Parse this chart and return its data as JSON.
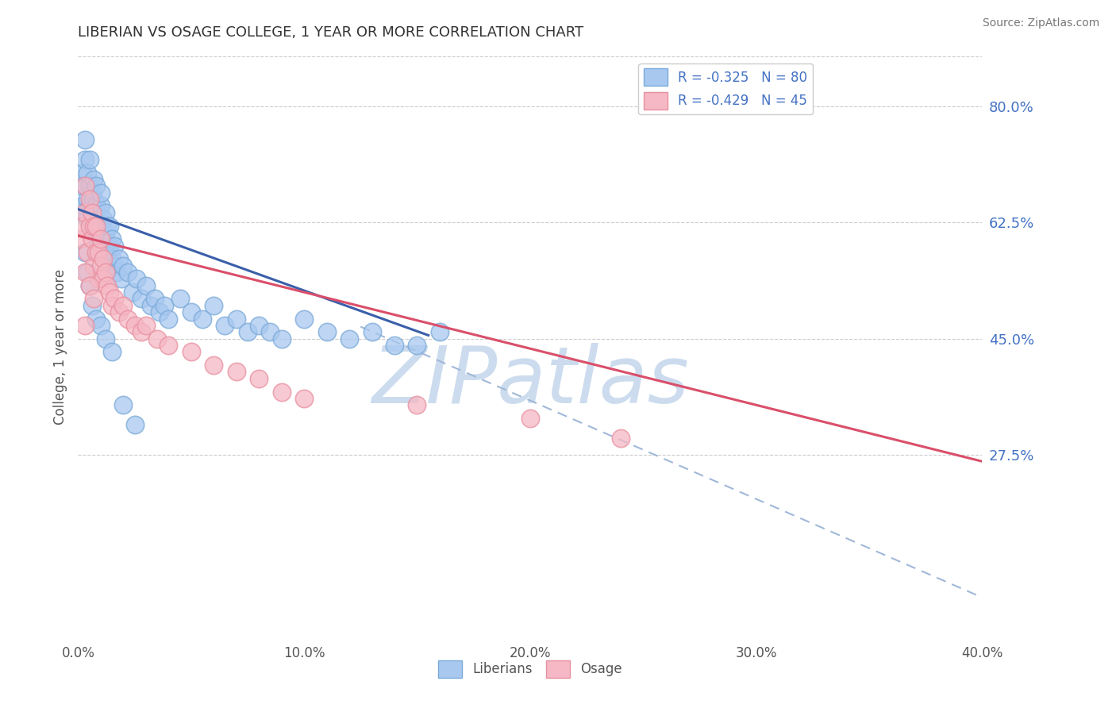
{
  "title": "LIBERIAN VS OSAGE COLLEGE, 1 YEAR OR MORE CORRELATION CHART",
  "source_text": "Source: ZipAtlas.com",
  "ylabel": "College, 1 year or more",
  "xlim": [
    0.0,
    0.4
  ],
  "ylim": [
    0.0,
    0.875
  ],
  "xticks": [
    0.0,
    0.1,
    0.2,
    0.3,
    0.4
  ],
  "xtick_labels": [
    "0.0%",
    "10.0%",
    "20.0%",
    "30.0%",
    "40.0%"
  ],
  "yticks_right": [
    0.275,
    0.45,
    0.625,
    0.8
  ],
  "ytick_labels_right": [
    "27.5%",
    "45.0%",
    "62.5%",
    "80.0%"
  ],
  "grid_color": "#cccccc",
  "grid_style": "--",
  "blue_scatter_facecolor": "#a8c8f0",
  "blue_scatter_edgecolor": "#7aaad8",
  "pink_scatter_facecolor": "#f5b8c4",
  "pink_scatter_edgecolor": "#e890a0",
  "blue_line_color": "#3a5faa",
  "pink_line_color": "#d94f6a",
  "dash_line_color": "#a0b8d8",
  "R_blue": -0.325,
  "N_blue": 80,
  "R_pink": -0.429,
  "N_pink": 45,
  "legend_label_blue": "Liberians",
  "legend_label_pink": "Osage",
  "watermark": "ZIPatlas",
  "watermark_color": "#ccdcee",
  "blue_points_x": [
    0.001,
    0.001,
    0.002,
    0.002,
    0.003,
    0.003,
    0.003,
    0.004,
    0.004,
    0.004,
    0.005,
    0.005,
    0.005,
    0.006,
    0.006,
    0.006,
    0.007,
    0.007,
    0.007,
    0.008,
    0.008,
    0.008,
    0.009,
    0.009,
    0.01,
    0.01,
    0.01,
    0.011,
    0.011,
    0.012,
    0.012,
    0.013,
    0.013,
    0.014,
    0.014,
    0.015,
    0.015,
    0.016,
    0.016,
    0.017,
    0.018,
    0.019,
    0.02,
    0.022,
    0.024,
    0.026,
    0.028,
    0.03,
    0.032,
    0.034,
    0.036,
    0.038,
    0.04,
    0.045,
    0.05,
    0.055,
    0.06,
    0.065,
    0.07,
    0.075,
    0.08,
    0.085,
    0.09,
    0.1,
    0.11,
    0.12,
    0.13,
    0.14,
    0.15,
    0.16,
    0.003,
    0.004,
    0.005,
    0.006,
    0.008,
    0.01,
    0.012,
    0.015,
    0.02,
    0.025
  ],
  "blue_points_y": [
    0.64,
    0.68,
    0.7,
    0.65,
    0.72,
    0.75,
    0.68,
    0.66,
    0.7,
    0.63,
    0.65,
    0.68,
    0.72,
    0.62,
    0.65,
    0.67,
    0.63,
    0.66,
    0.69,
    0.62,
    0.65,
    0.68,
    0.6,
    0.63,
    0.62,
    0.65,
    0.67,
    0.6,
    0.63,
    0.61,
    0.64,
    0.58,
    0.62,
    0.59,
    0.62,
    0.57,
    0.6,
    0.56,
    0.59,
    0.55,
    0.57,
    0.54,
    0.56,
    0.55,
    0.52,
    0.54,
    0.51,
    0.53,
    0.5,
    0.51,
    0.49,
    0.5,
    0.48,
    0.51,
    0.49,
    0.48,
    0.5,
    0.47,
    0.48,
    0.46,
    0.47,
    0.46,
    0.45,
    0.48,
    0.46,
    0.45,
    0.46,
    0.44,
    0.44,
    0.46,
    0.58,
    0.55,
    0.53,
    0.5,
    0.48,
    0.47,
    0.45,
    0.43,
    0.35,
    0.32
  ],
  "pink_points_x": [
    0.001,
    0.002,
    0.003,
    0.003,
    0.004,
    0.005,
    0.005,
    0.006,
    0.006,
    0.007,
    0.007,
    0.008,
    0.008,
    0.009,
    0.009,
    0.01,
    0.01,
    0.011,
    0.011,
    0.012,
    0.013,
    0.014,
    0.015,
    0.016,
    0.018,
    0.02,
    0.022,
    0.025,
    0.028,
    0.03,
    0.035,
    0.04,
    0.05,
    0.06,
    0.07,
    0.08,
    0.09,
    0.1,
    0.15,
    0.2,
    0.003,
    0.005,
    0.007,
    0.24,
    0.003
  ],
  "pink_points_y": [
    0.6,
    0.62,
    0.64,
    0.68,
    0.58,
    0.62,
    0.66,
    0.6,
    0.64,
    0.56,
    0.62,
    0.58,
    0.62,
    0.54,
    0.58,
    0.56,
    0.6,
    0.54,
    0.57,
    0.55,
    0.53,
    0.52,
    0.5,
    0.51,
    0.49,
    0.5,
    0.48,
    0.47,
    0.46,
    0.47,
    0.45,
    0.44,
    0.43,
    0.41,
    0.4,
    0.39,
    0.37,
    0.36,
    0.35,
    0.33,
    0.55,
    0.53,
    0.51,
    0.3,
    0.47
  ],
  "blue_line_x": [
    0.0,
    0.155
  ],
  "blue_line_y": [
    0.645,
    0.455
  ],
  "pink_line_x": [
    0.0,
    0.4
  ],
  "pink_line_y": [
    0.605,
    0.265
  ],
  "dash_line_x": [
    0.125,
    0.4
  ],
  "dash_line_y": [
    0.468,
    0.06
  ]
}
